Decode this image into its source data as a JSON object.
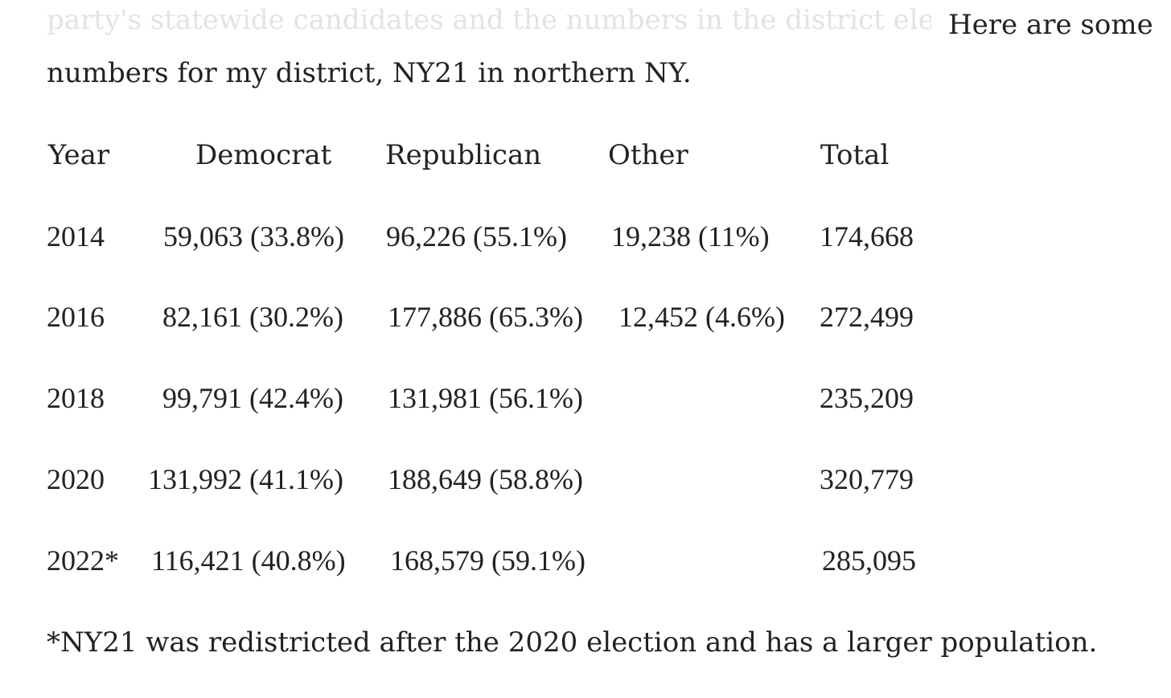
{
  "intro": {
    "faded_prefix": "party's statewide candidates and the numbers in the district elections",
    "line1_end": "Here are some",
    "line2": "numbers for my district, NY21 in northern NY."
  },
  "table": {
    "headers": [
      "Year",
      "Democrat",
      "Republican",
      "Other",
      "Total"
    ],
    "rows": [
      {
        "year": "2014",
        "democrat": "59,063 (33.8%)",
        "republican": "96,226 (55.1%)",
        "other": "19,238 (11%)",
        "total": "174,668"
      },
      {
        "year": "2016",
        "democrat": "82,161 (30.2%)",
        "republican": "177,886 (65.3%)",
        "other": "12,452 (4.6%)",
        "total": "272,499"
      },
      {
        "year": "2018",
        "democrat": "99,791 (42.4%)",
        "republican": "131,981 (56.1%)",
        "other": "",
        "total": "235,209"
      },
      {
        "year": "2020",
        "democrat": "131,992 (41.1%)",
        "republican": "188,649 (58.8%)",
        "other": "",
        "total": "320,779"
      },
      {
        "year": "2022*",
        "democrat": "116,421 (40.8%)",
        "republican": "168,579 (59.1%)",
        "other": "",
        "total": "285,095"
      }
    ]
  },
  "footnote": "*NY21 was redistricted after the 2020 election and has a larger population."
}
